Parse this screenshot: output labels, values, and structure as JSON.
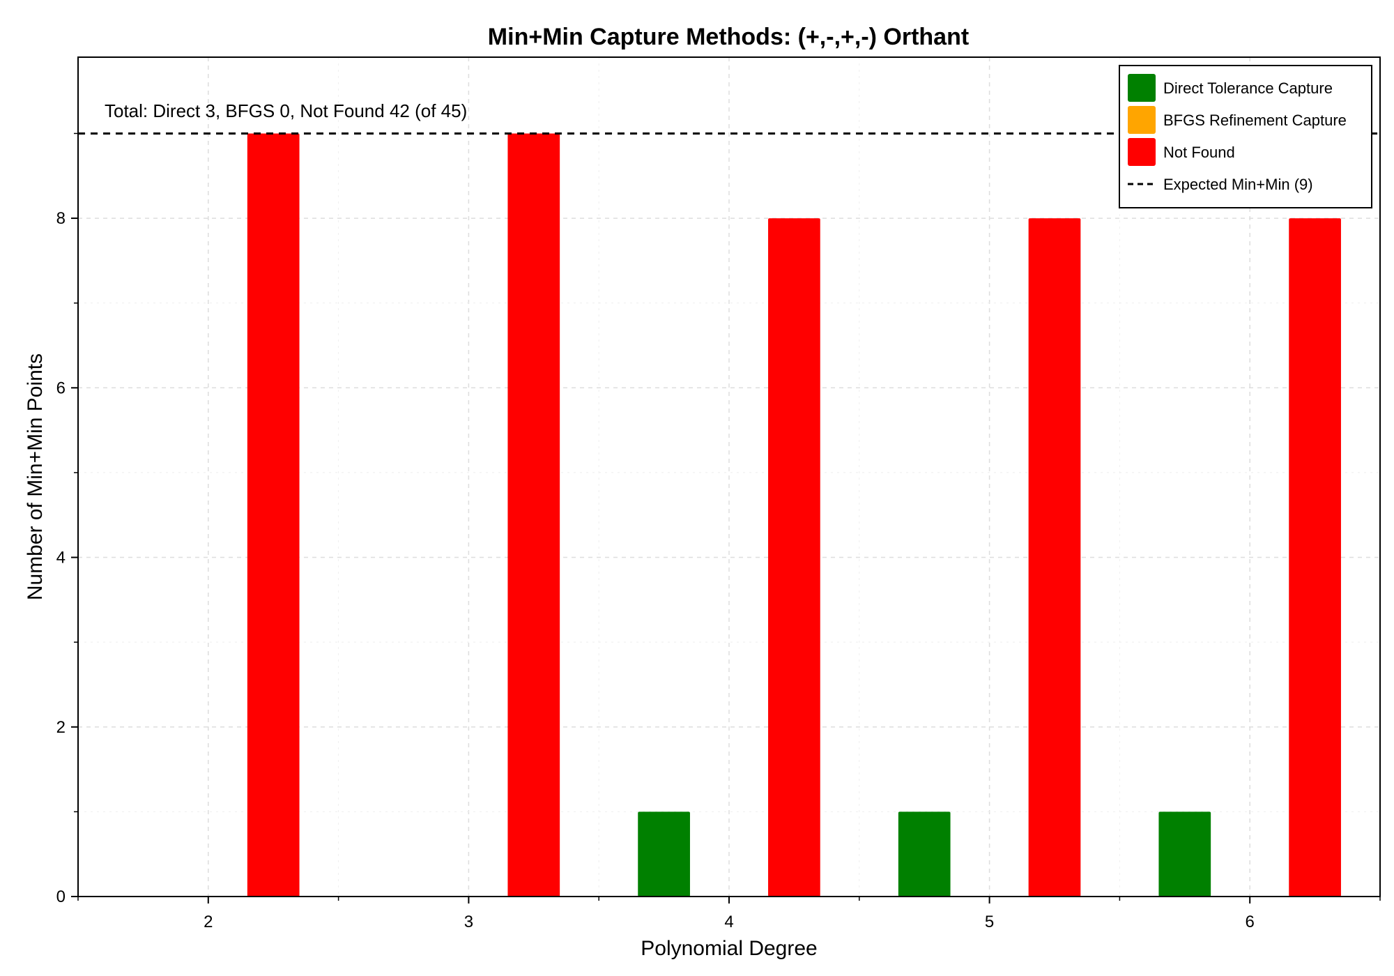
{
  "chart_data": {
    "type": "bar",
    "title": "Min+Min Capture Methods: (+,-,+,-) Orthant",
    "xlabel": "Polynomial Degree",
    "ylabel": "Number of Min+Min Points",
    "x": [
      2,
      3,
      4,
      5,
      6
    ],
    "x_ticks": [
      "2",
      "3",
      "4",
      "5",
      "6"
    ],
    "y_ticks": [
      "0",
      "2",
      "4",
      "6",
      "8"
    ],
    "xlim": [
      1.5,
      6.5
    ],
    "ylim": [
      0,
      9.9
    ],
    "grid": true,
    "legend_position": "top-right",
    "series": [
      {
        "name": "Direct Tolerance Capture",
        "color": "#008000",
        "values": [
          0,
          0,
          1,
          1,
          1
        ]
      },
      {
        "name": "BFGS Refinement Capture",
        "color": "#FFA500",
        "values": [
          0,
          0,
          0,
          0,
          0
        ]
      },
      {
        "name": "Not Found",
        "color": "#FF0000",
        "values": [
          9,
          9,
          8,
          8,
          8
        ]
      }
    ],
    "reference_line": {
      "name": "Expected Min+Min (9)",
      "y": 9,
      "style": "dashed",
      "color": "#000000"
    },
    "annotation": "Total: Direct 3, BFGS 0, Not Found 42 (of 45)"
  }
}
